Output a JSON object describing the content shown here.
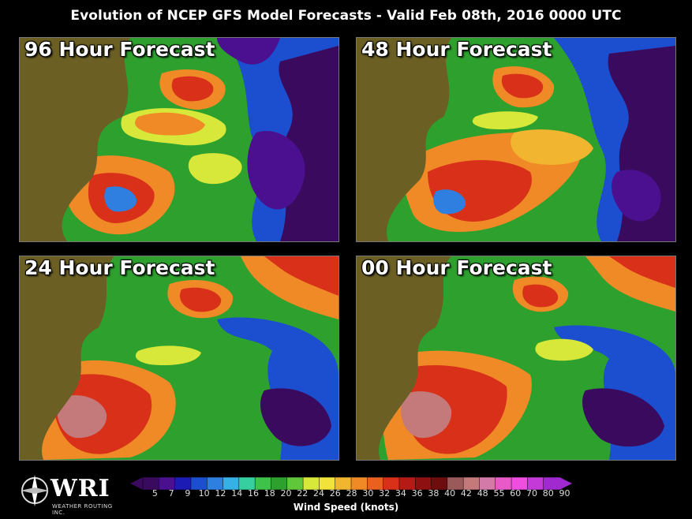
{
  "title": "Evolution of NCEP GFS Model Forecasts - Valid Feb 08th, 2016 0000 UTC",
  "panels": [
    {
      "label": "96 Hour Forecast"
    },
    {
      "label": "48 Hour Forecast"
    },
    {
      "label": "24 Hour Forecast"
    },
    {
      "label": "00 Hour Forecast"
    }
  ],
  "logo": {
    "name": "WRI",
    "subtitle": "WEATHER ROUTING INC."
  },
  "colorbar": {
    "title": "Wind Speed (knots)",
    "values": [
      "5",
      "7",
      "9",
      "10",
      "12",
      "14",
      "16",
      "18",
      "20",
      "22",
      "24",
      "26",
      "28",
      "30",
      "32",
      "34",
      "36",
      "38",
      "40",
      "42",
      "48",
      "55",
      "60",
      "70",
      "80",
      "90"
    ],
    "colors": [
      "#3a0a5e",
      "#4b1090",
      "#1c1cb5",
      "#1b4fcf",
      "#2f7fe0",
      "#37b0e6",
      "#35cfa0",
      "#3ec24a",
      "#2ea02e",
      "#5ec83a",
      "#d7e83a",
      "#f2e33a",
      "#f2b530",
      "#ef8a26",
      "#e9601f",
      "#d9301a",
      "#b51a14",
      "#8e1010",
      "#6e0d0d",
      "#9b5a5a",
      "#c47a7a",
      "#d47aa8",
      "#e85ac8",
      "#f04ee0",
      "#c43ad8",
      "#a02ad0"
    ]
  }
}
